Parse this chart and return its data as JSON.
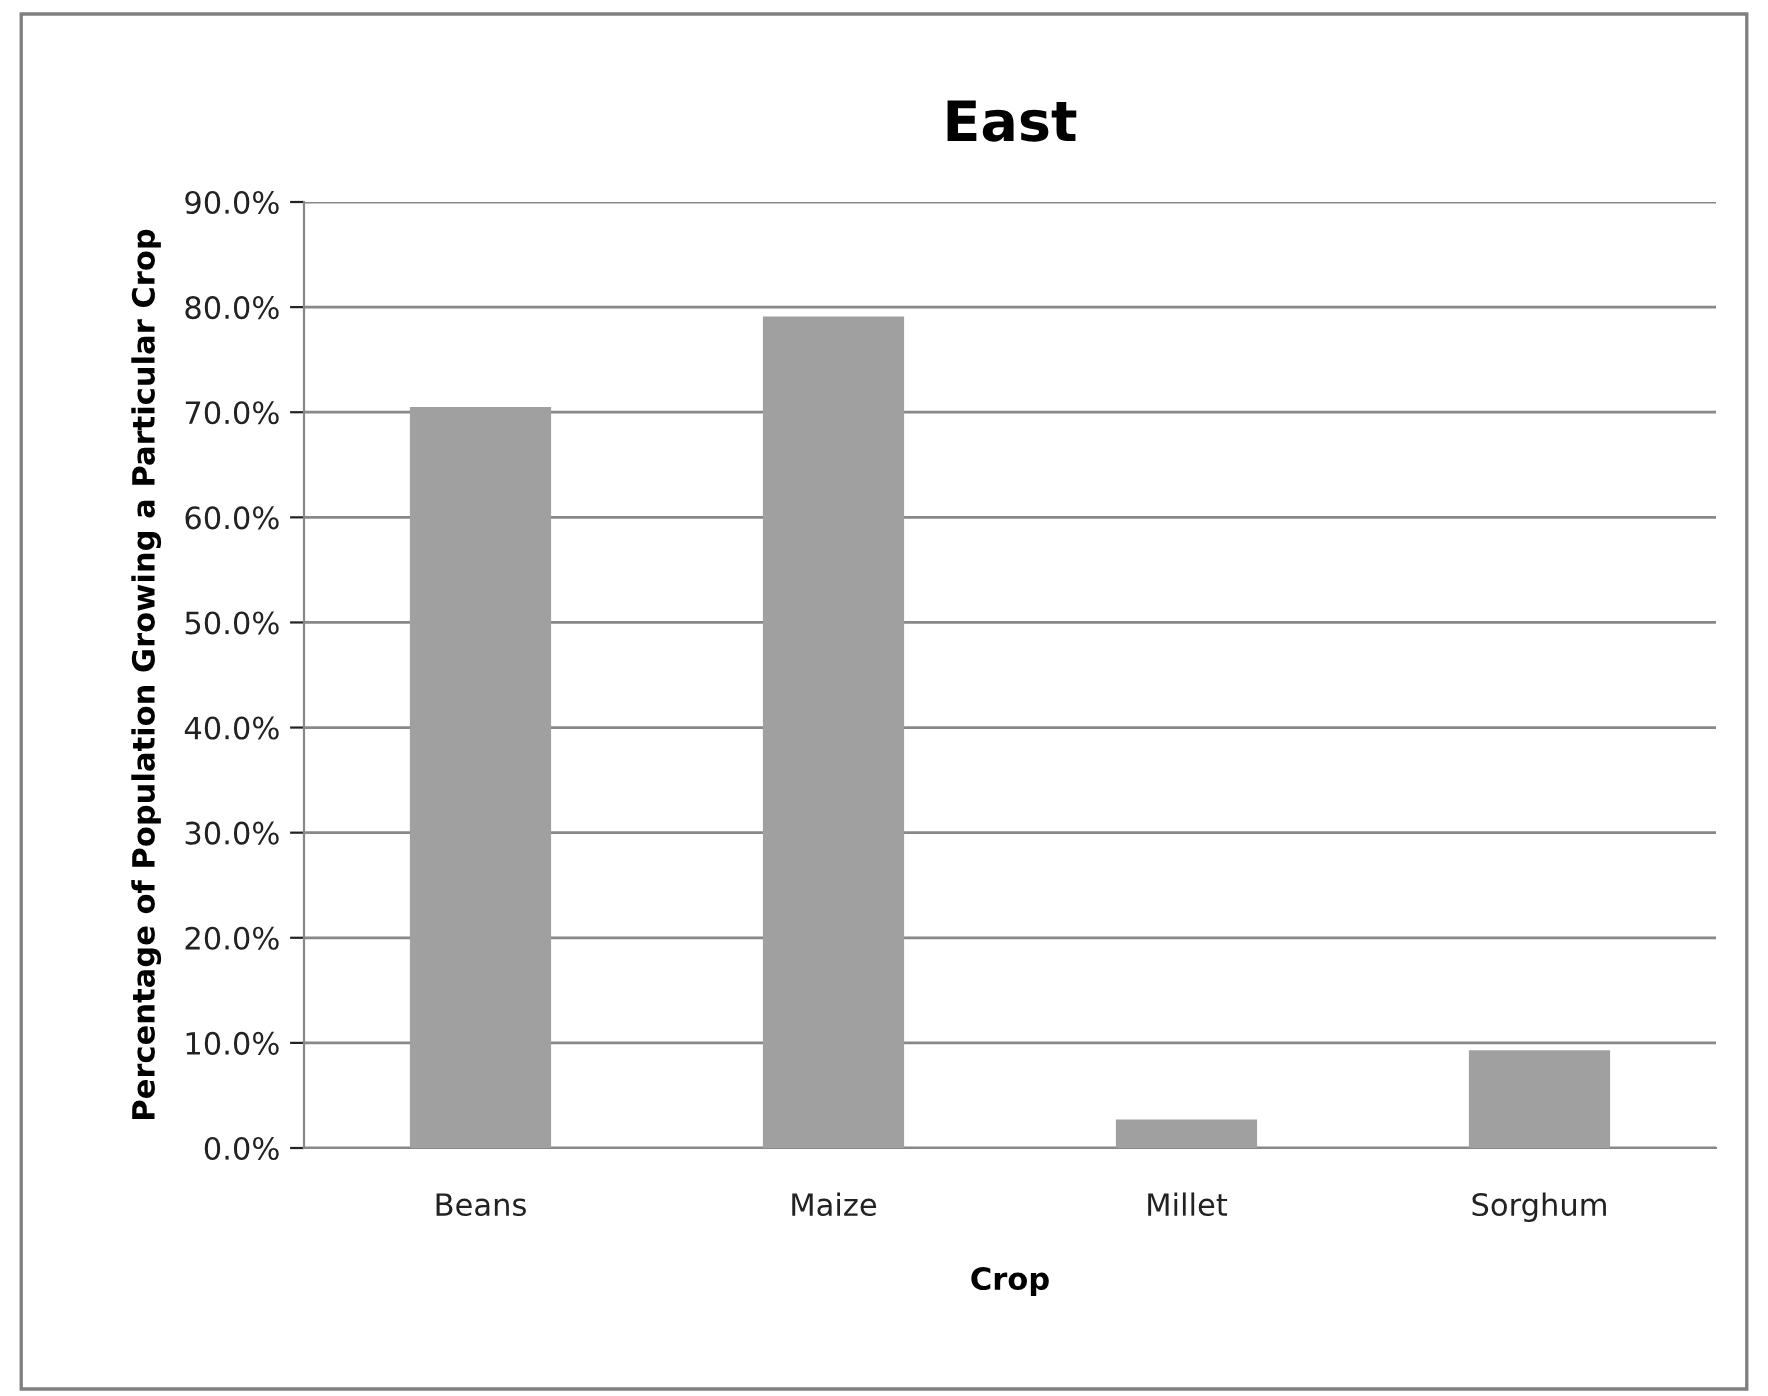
{
  "chart_data": {
    "type": "bar",
    "title": "East",
    "xlabel": "Crop",
    "ylabel": "Percentage of Population Growing a Particular Crop",
    "categories": [
      "Beans",
      "Maize",
      "Millet",
      "Sorghum"
    ],
    "values": [
      70.5,
      79.1,
      2.7,
      9.3
    ],
    "color": "#a0a0a0",
    "ylim": [
      0,
      90
    ],
    "yticks": [
      {
        "value": 0,
        "label": "0.0%"
      },
      {
        "value": 10,
        "label": "10.0%"
      },
      {
        "value": 20,
        "label": "20.0%"
      },
      {
        "value": 30,
        "label": "30.0%"
      },
      {
        "value": 40,
        "label": "40.0%"
      },
      {
        "value": 50,
        "label": "50.0%"
      },
      {
        "value": 60,
        "label": "60.0%"
      },
      {
        "value": 70,
        "label": "70.0%"
      },
      {
        "value": 80,
        "label": "80.0%"
      },
      {
        "value": 90,
        "label": "90.0%"
      }
    ],
    "grid": "y",
    "legend": false
  }
}
